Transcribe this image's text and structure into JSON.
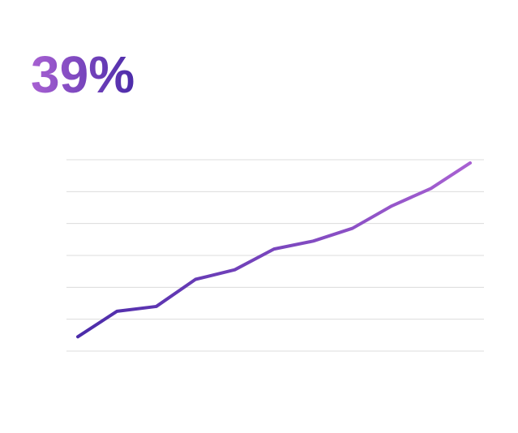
{
  "chart_data": {
    "type": "line",
    "title": "39%",
    "categories": [
      null,
      null,
      null,
      null,
      null,
      null,
      null,
      null,
      null,
      null,
      null
    ],
    "series": [
      {
        "values": [
          0.45,
          1.25,
          1.4,
          2.25,
          2.55,
          3.2,
          3.45,
          3.85,
          4.55,
          5.1,
          5.9
        ]
      }
    ],
    "colors": [
      "#4b2ba9",
      "#a861d2"
    ],
    "ylim": [
      0,
      6
    ],
    "yticks": [
      0,
      1,
      2,
      3,
      4,
      5,
      6
    ],
    "grid": true
  }
}
